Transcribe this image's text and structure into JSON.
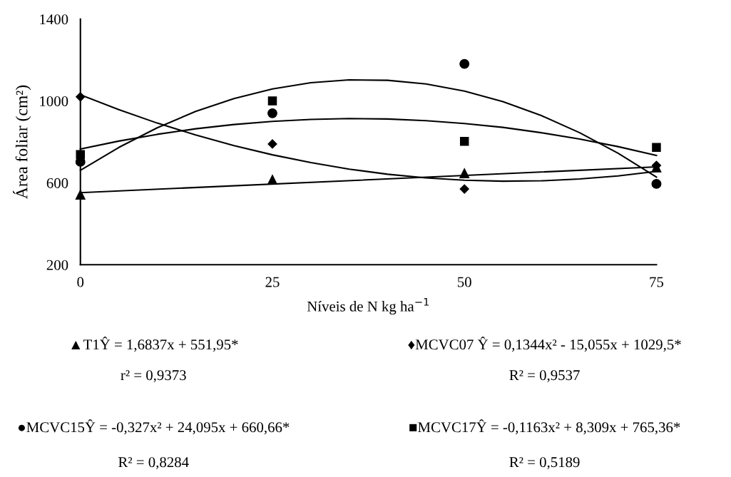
{
  "chart_data": {
    "type": "scatter",
    "xlabel": "Níveis de N kg ha$^{−1}$",
    "ylabel": "Área foliar (cm²)",
    "xlim": [
      0,
      75
    ],
    "xticks": [
      0,
      25,
      50,
      75
    ],
    "ylim": [
      200,
      1400
    ],
    "yticks": [
      200,
      600,
      1000,
      1400
    ],
    "grid": false,
    "legend": false,
    "series": [
      {
        "marker": "triangle",
        "color": "#000000",
        "x": [
          0,
          25,
          50,
          75
        ],
        "values": [
          542,
          615,
          647,
          675
        ]
      },
      {
        "marker": "diamond",
        "color": "#000000",
        "x": [
          0,
          25,
          50,
          75
        ],
        "values": [
          1020,
          790,
          570,
          685
        ]
      },
      {
        "marker": "circle",
        "color": "#000000",
        "x": [
          0,
          25,
          50,
          75
        ],
        "values": [
          703,
          940,
          1181,
          595
        ]
      },
      {
        "marker": "square",
        "color": "#000000",
        "x": [
          0,
          25,
          50,
          75
        ],
        "values": [
          738,
          1000,
          803,
          773
        ]
      },
      {
        "type": "line",
        "marker": "none",
        "line_style": "solid",
        "color": "#000000",
        "x": [
          0,
          75
        ],
        "values": [
          552,
          678
        ]
      },
      {
        "type": "line",
        "marker": "none",
        "line_style": "solid",
        "color": "#000000",
        "x": [
          0,
          5,
          10,
          15,
          20,
          25,
          30,
          35,
          40,
          45,
          50,
          55,
          60,
          65,
          70,
          75
        ],
        "values": [
          1030,
          958,
          892,
          834,
          782,
          737,
          699,
          667,
          642,
          624,
          613,
          608,
          610,
          619,
          634,
          656
        ]
      },
      {
        "type": "line",
        "marker": "none",
        "line_style": "solid",
        "color": "#000000",
        "x": [
          0,
          5,
          10,
          15,
          20,
          25,
          30,
          35,
          40,
          45,
          50,
          55,
          60,
          65,
          70,
          75
        ],
        "values": [
          661,
          773,
          869,
          949,
          1012,
          1059,
          1089,
          1103,
          1101,
          1083,
          1048,
          997,
          929,
          845,
          745,
          628
        ]
      },
      {
        "type": "line",
        "marker": "none",
        "line_style": "solid",
        "color": "#000000",
        "x": [
          0,
          5,
          10,
          15,
          20,
          25,
          30,
          35,
          40,
          45,
          50,
          55,
          60,
          65,
          70,
          75
        ],
        "values": [
          765,
          804,
          837,
          864,
          885,
          900,
          910,
          914,
          912,
          904,
          890,
          871,
          845,
          814,
          777,
          734
        ]
      }
    ],
    "annotations": [
      "▲T1Ŷ = 1,6837x + 551,95*",
      "r² = 0,9373",
      "♦MCVC07 Ŷ = 0,1344x² - 15,055x + 1029,5*",
      "R² = 0,9537",
      "●MCVC15Ŷ = -0,327x² + 24,095x + 660,66*",
      "R² = 0,8284",
      "■MCVC17Ŷ = -0,1163x² + 8,309x + 765,36*",
      "R² = 0,5189"
    ]
  }
}
